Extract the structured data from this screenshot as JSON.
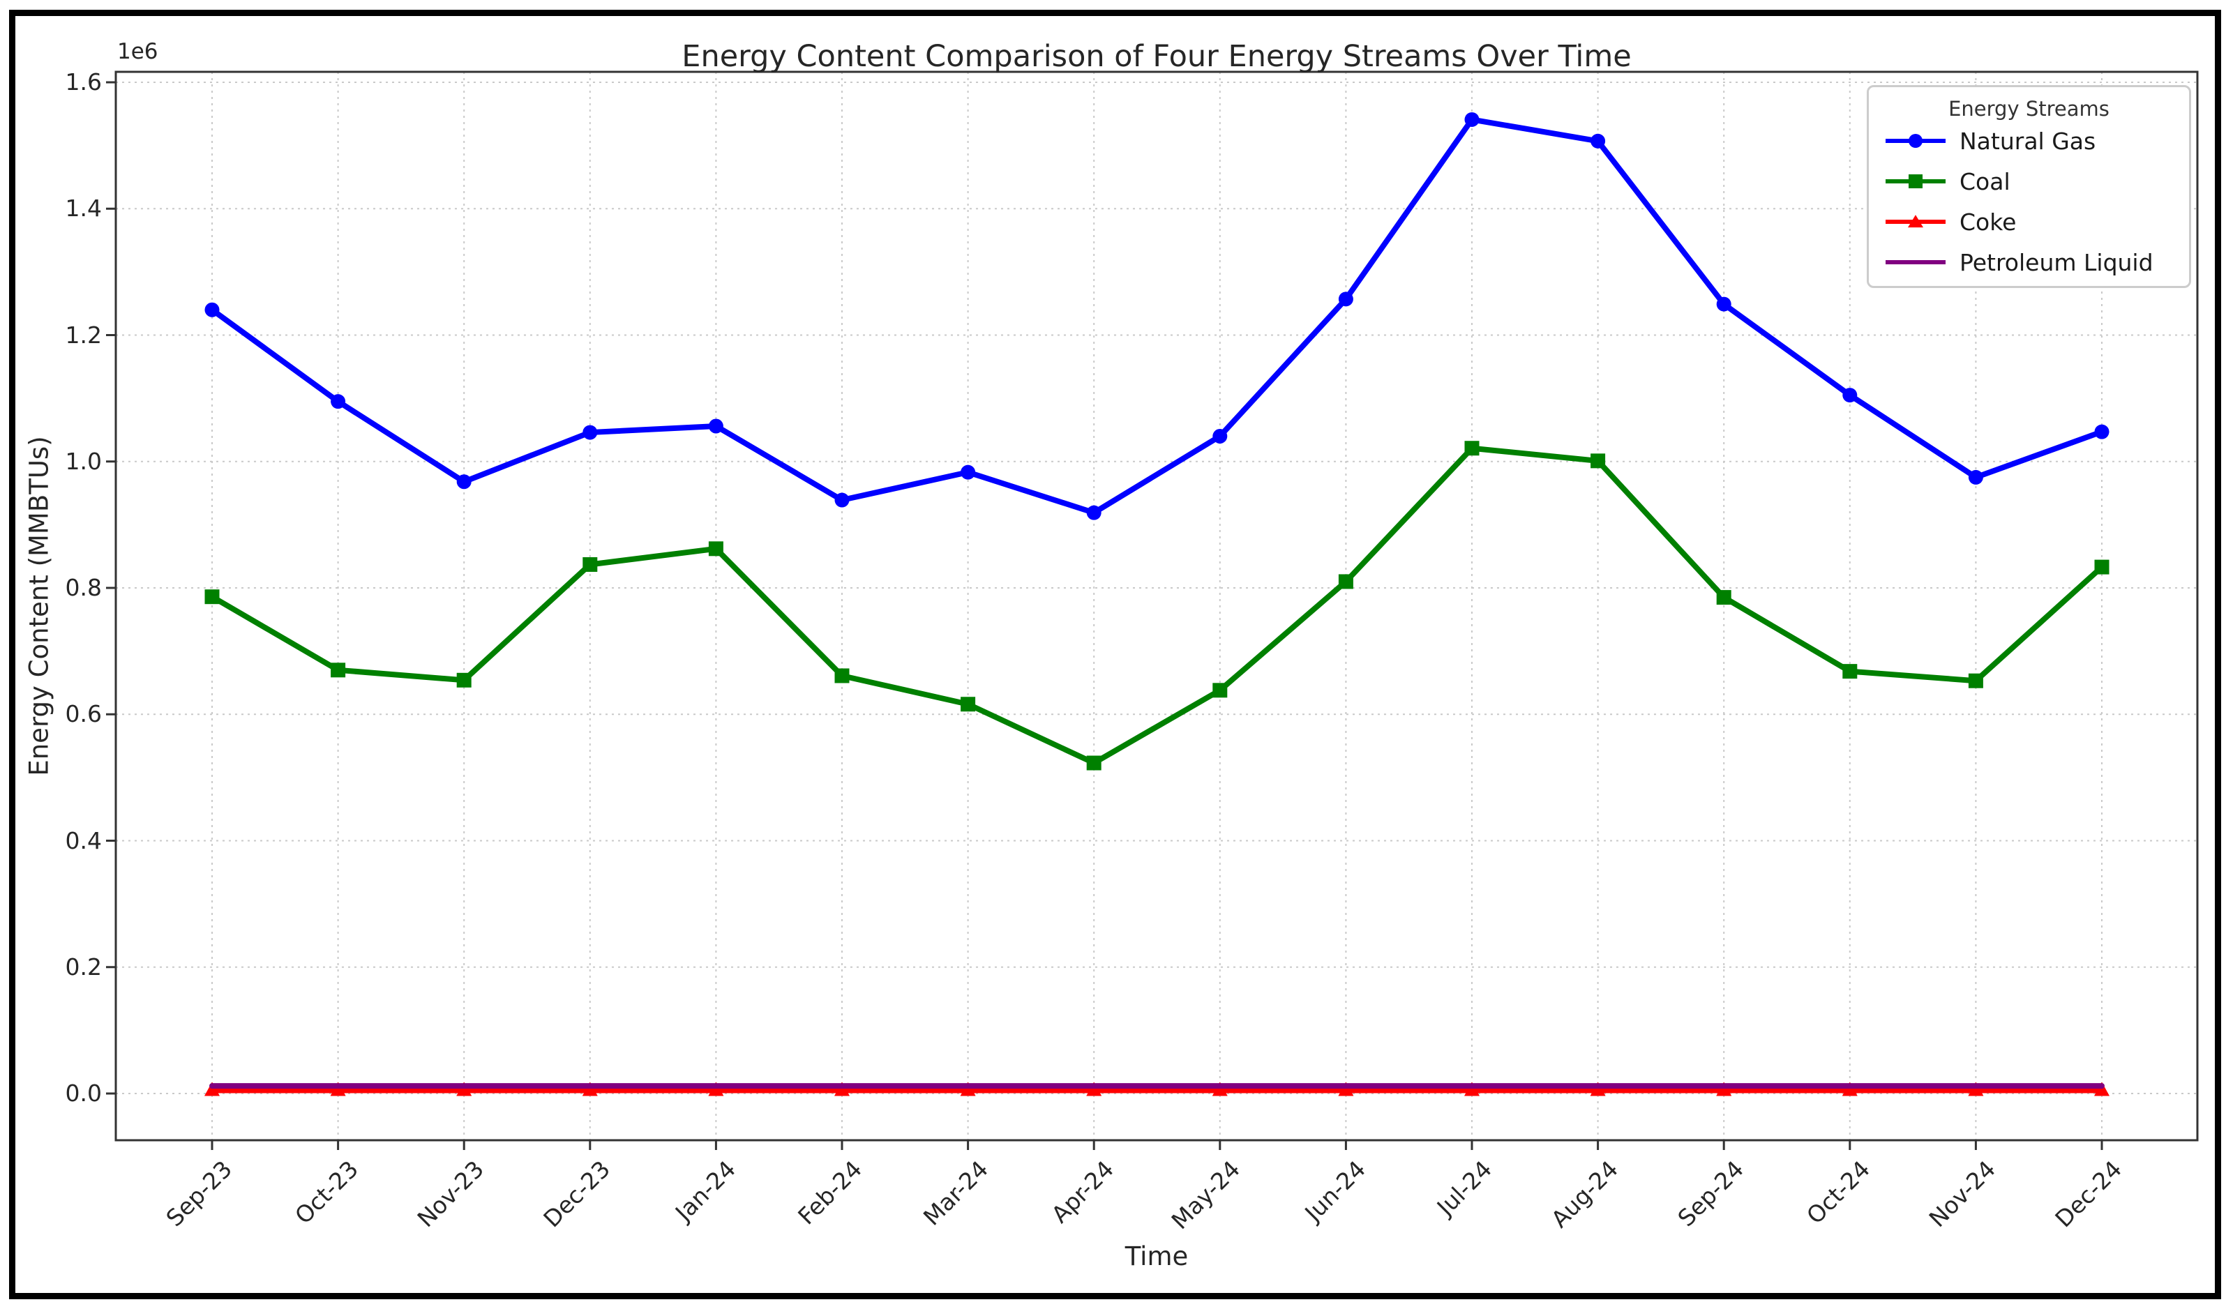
{
  "chart_data": {
    "type": "line",
    "title": "Energy Content Comparison of Four Energy Streams Over Time",
    "xlabel": "Time",
    "ylabel": "Energy Content (MMBTUs)",
    "offset_label": "1e6",
    "grid": true,
    "legend": {
      "title": "Energy Streams",
      "position": "upper right"
    },
    "categories": [
      "Sep-23",
      "Oct-23",
      "Nov-23",
      "Dec-23",
      "Jan-24",
      "Feb-24",
      "Mar-24",
      "Apr-24",
      "May-24",
      "Jun-24",
      "Jul-24",
      "Aug-24",
      "Sep-24",
      "Oct-24",
      "Nov-24",
      "Dec-24"
    ],
    "yticks": [
      0,
      200000,
      400000,
      600000,
      800000,
      1000000,
      1200000,
      1400000,
      1600000
    ],
    "ytick_labels": [
      "0.0",
      "0.2",
      "0.4",
      "0.6",
      "0.8",
      "1.0",
      "1.2",
      "1.4",
      "1.6"
    ],
    "ylim": [
      -74000,
      1617000
    ],
    "series": [
      {
        "name": "Natural Gas",
        "color": "#0000ff",
        "marker": "circle",
        "values": [
          1240000,
          1095000,
          968000,
          1046000,
          1056000,
          939000,
          983000,
          919000,
          1040000,
          1257000,
          1541000,
          1507000,
          1249000,
          1105000,
          975000,
          1047000
        ]
      },
      {
        "name": "Coal",
        "color": "#008000",
        "marker": "square",
        "values": [
          786000,
          670000,
          654000,
          837000,
          862000,
          661000,
          616000,
          523000,
          638000,
          810000,
          1021000,
          1001000,
          785000,
          668000,
          653000,
          833000
        ]
      },
      {
        "name": "Coke",
        "color": "#ff0000",
        "marker": "triangle",
        "values": [
          5000,
          5000,
          5000,
          5000,
          5000,
          5000,
          5000,
          5000,
          5000,
          5000,
          5000,
          5000,
          5000,
          5000,
          5000,
          5000
        ]
      },
      {
        "name": "Petroleum Liquid",
        "color": "#800080",
        "marker": "none",
        "values": [
          12000,
          12000,
          12000,
          12000,
          12000,
          12000,
          12000,
          12000,
          12000,
          12000,
          12000,
          12000,
          12000,
          12000,
          12000,
          12000
        ]
      }
    ],
    "colors": {
      "grid": "#c9c9c9",
      "spine": "#333333",
      "text": "#262626"
    }
  }
}
